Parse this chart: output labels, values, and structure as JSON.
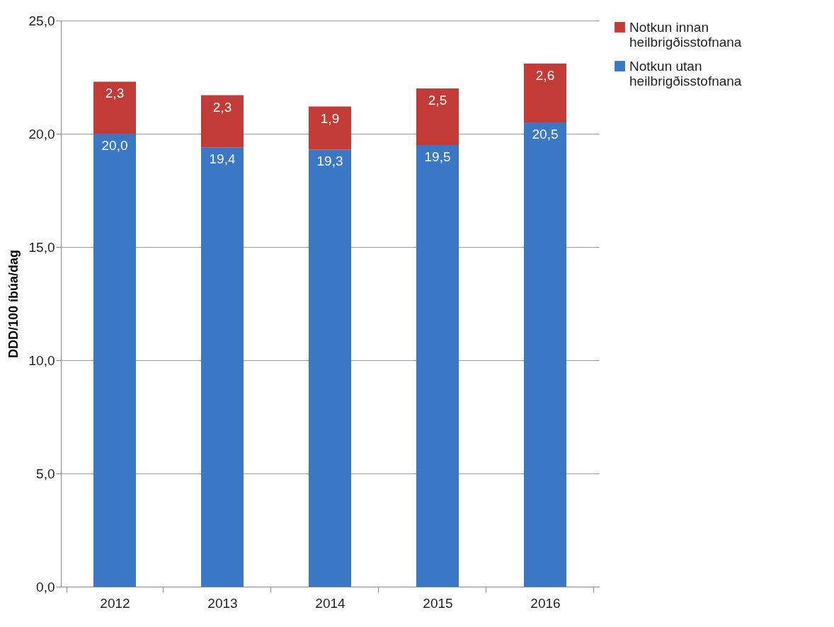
{
  "chart_data": {
    "type": "bar",
    "stacked": true,
    "ylabel": "DDD/100 íbúa/dag",
    "categories": [
      "2012",
      "2013",
      "2014",
      "2015",
      "2016"
    ],
    "series": [
      {
        "name": "Notkun utan heilbrigðisstofnana",
        "color": "#3a77c4",
        "values": [
          20.0,
          19.4,
          19.3,
          19.5,
          20.5
        ],
        "value_labels": [
          "20,0",
          "19,4",
          "19,3",
          "19,5",
          "20,5"
        ]
      },
      {
        "name": "Notkun innan heilbrigðisstofnana",
        "color": "#c23b36",
        "values": [
          2.3,
          2.3,
          1.9,
          2.5,
          2.6
        ],
        "value_labels": [
          "2,3",
          "2,3",
          "1,9",
          "2,5",
          "2,6"
        ]
      }
    ],
    "ylim": [
      0,
      25
    ],
    "yticks": [
      {
        "value": 0,
        "label": "0,0"
      },
      {
        "value": 5,
        "label": "5,0"
      },
      {
        "value": 10,
        "label": "10,0"
      },
      {
        "value": 15,
        "label": "15,0"
      },
      {
        "value": 20,
        "label": "20,0"
      },
      {
        "value": 25,
        "label": "25,0"
      }
    ],
    "grid": "y",
    "legend": "right"
  }
}
